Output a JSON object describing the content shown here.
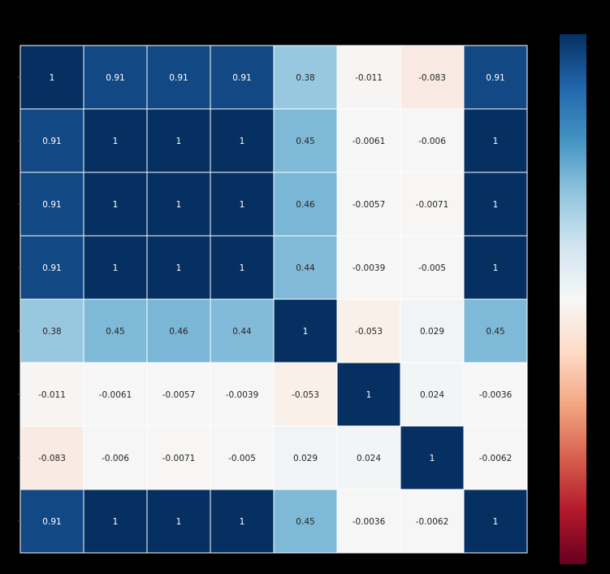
{
  "chart_data": {
    "type": "heatmap",
    "title": "",
    "xlabel": "",
    "ylabel": "",
    "x_tick_labels": [],
    "y_tick_labels": [],
    "colormap": "RdBu",
    "vmin": -0.083,
    "vmax": 1,
    "gridlines": "white",
    "colorbar": "right",
    "values": [
      [
        1,
        0.91,
        0.91,
        0.91,
        0.38,
        -0.011,
        -0.083,
        0.91
      ],
      [
        0.91,
        1,
        1,
        1,
        0.45,
        -0.0061,
        -0.006,
        1
      ],
      [
        0.91,
        1,
        1,
        1,
        0.46,
        -0.0057,
        -0.0071,
        1
      ],
      [
        0.91,
        1,
        1,
        1,
        0.44,
        -0.0039,
        -0.005,
        1
      ],
      [
        0.38,
        0.45,
        0.46,
        0.44,
        1,
        -0.053,
        0.029,
        0.45
      ],
      [
        -0.011,
        -0.0061,
        -0.0057,
        -0.0039,
        -0.053,
        1,
        0.024,
        -0.0036
      ],
      [
        -0.083,
        -0.006,
        -0.0071,
        -0.005,
        0.029,
        0.024,
        1,
        -0.0062
      ],
      [
        0.91,
        1,
        1,
        1,
        0.45,
        -0.0036,
        -0.0062,
        1
      ]
    ]
  }
}
